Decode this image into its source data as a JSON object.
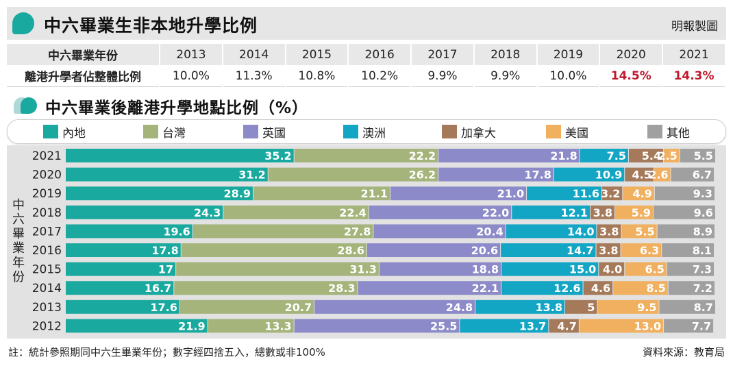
{
  "header": {
    "title": "中六畢業生非本地升學比例",
    "source_top": "明報製圖"
  },
  "table": {
    "row1_label": "中六畢業年份",
    "row2_label": "離港升學者佔整體比例",
    "years": [
      "2013",
      "2014",
      "2015",
      "2016",
      "2017",
      "2018",
      "2019",
      "2020",
      "2021"
    ],
    "values": [
      "10.0%",
      "11.3%",
      "10.8%",
      "10.2%",
      "9.9%",
      "9.9%",
      "10.0%",
      "14.5%",
      "14.3%"
    ],
    "highlight_color": "#c0182b"
  },
  "subtitle": "中六畢業後離港升學地點比例（%）",
  "footer": {
    "note": "註：統計參照期同中六生畢業年份；數字經四捨五入，總數或非100%",
    "source": "資料來源：教育局"
  },
  "chart_data": {
    "type": "bar",
    "orientation": "horizontal",
    "stacked": true,
    "ylabel": "中六畢業年份",
    "categories": [
      "2021",
      "2020",
      "2019",
      "2018",
      "2017",
      "2016",
      "2015",
      "2014",
      "2013",
      "2012"
    ],
    "series": [
      {
        "name": "內地",
        "color": "#1aa99f",
        "values": [
          35.2,
          31.2,
          28.9,
          24.3,
          19.6,
          17.8,
          17,
          16.7,
          17.6,
          21.9
        ],
        "labels": [
          "35.2",
          "31.2",
          "28.9",
          "24.3",
          "19.6",
          "17.8",
          "17",
          "16.7",
          "17.6",
          "21.9"
        ]
      },
      {
        "name": "台灣",
        "color": "#a4b47a",
        "values": [
          22.2,
          26.2,
          21.1,
          22.4,
          27.8,
          28.6,
          31.3,
          28.3,
          20.7,
          13.3
        ],
        "labels": [
          "22.2",
          "26.2",
          "21.1",
          "22.4",
          "27.8",
          "28.6",
          "31.3",
          "28.3",
          "20.7",
          "13.3"
        ]
      },
      {
        "name": "英國",
        "color": "#8c8ac8",
        "values": [
          21.8,
          17.8,
          21.0,
          22.0,
          20.4,
          20.6,
          18.8,
          22.1,
          24.8,
          25.5
        ],
        "labels": [
          "21.8",
          "17.8",
          "21.0",
          "22.0",
          "20.4",
          "20.6",
          "18.8",
          "22.1",
          "24.8",
          "25.5"
        ]
      },
      {
        "name": "澳洲",
        "color": "#13a5c4",
        "values": [
          7.5,
          10.9,
          11.6,
          12.1,
          14.0,
          14.7,
          15.0,
          12.6,
          13.8,
          13.7
        ],
        "labels": [
          "7.5",
          "10.9",
          "11.6",
          "12.1",
          "14.0",
          "14.7",
          "15.0",
          "12.6",
          "13.8",
          "13.7"
        ]
      },
      {
        "name": "加拿大",
        "color": "#a57a5a",
        "values": [
          5.4,
          4.5,
          3.2,
          3.8,
          3.8,
          3.8,
          4.0,
          4.6,
          5,
          4.7
        ],
        "labels": [
          "5.4",
          "4.5",
          "3.2",
          "3.8",
          "3.8",
          "3.8",
          "4.0",
          "4.6",
          "5",
          "4.7"
        ]
      },
      {
        "name": "美國",
        "color": "#f0b060",
        "values": [
          2.5,
          2.6,
          4.9,
          5.9,
          5.5,
          6.3,
          6.5,
          8.5,
          9.5,
          13.0
        ],
        "labels": [
          "2.5",
          "2.6",
          "4.9",
          "5.9",
          "5.5",
          "6.3",
          "6.5",
          "8.5",
          "9.5",
          "13.0"
        ]
      },
      {
        "name": "其他",
        "color": "#a0a0a0",
        "values": [
          5.5,
          6.7,
          9.3,
          9.6,
          8.9,
          8.1,
          7.3,
          7.2,
          8.7,
          7.7
        ],
        "labels": [
          "5.5",
          "6.7",
          "9.3",
          "9.6",
          "8.9",
          "8.1",
          "7.3",
          "7.2",
          "8.7",
          "7.7"
        ]
      }
    ],
    "xlim": [
      0,
      100
    ],
    "legend_position": "top",
    "grid": false
  }
}
